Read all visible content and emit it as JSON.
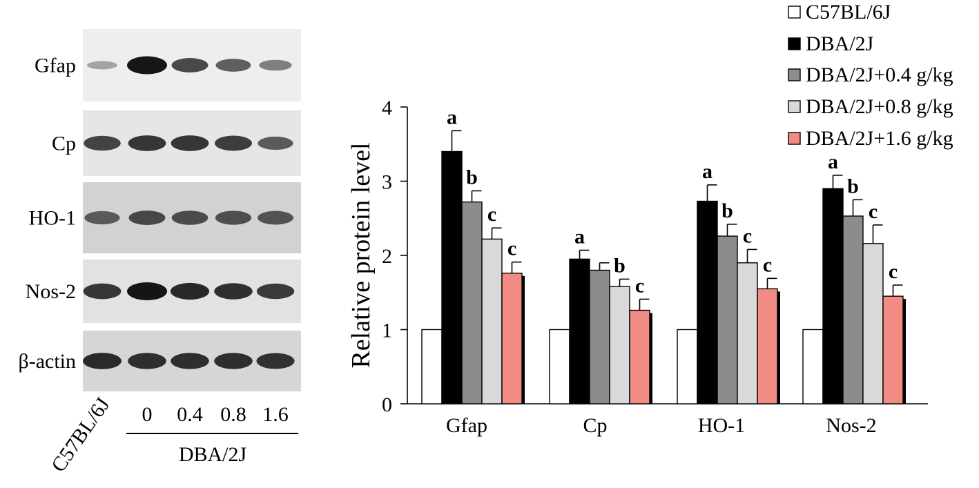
{
  "blot": {
    "rows": [
      {
        "label": "Gfap",
        "intensity": [
          0.22,
          1.0,
          0.72,
          0.6,
          0.42
        ],
        "bg": "#eeeeee"
      },
      {
        "label": "Cp",
        "intensity": [
          0.75,
          0.82,
          0.82,
          0.78,
          0.62
        ],
        "bg": "#e6e6e6"
      },
      {
        "label": "HO-1",
        "intensity": [
          0.62,
          0.72,
          0.7,
          0.68,
          0.66
        ],
        "bg": "#d2d2d2"
      },
      {
        "label": "Nos-2",
        "intensity": [
          0.82,
          1.0,
          0.9,
          0.86,
          0.8
        ],
        "bg": "#e2e2e2"
      },
      {
        "label": "β-actin",
        "intensity": [
          0.88,
          0.86,
          0.86,
          0.86,
          0.84
        ],
        "bg": "#d6d6d6"
      }
    ],
    "control_label": "C57BL/6J",
    "dose_labels": [
      "0",
      "0.4",
      "0.8",
      "1.6"
    ],
    "group_label": "DBA/2J"
  },
  "chart_data": {
    "type": "bar",
    "categories": [
      "Gfap",
      "Cp",
      "HO-1",
      "Nos-2"
    ],
    "ylabel": "Relative protein level",
    "ylim": [
      0,
      4
    ],
    "yticks": [
      "0",
      "1",
      "2",
      "3",
      "4"
    ],
    "grid": false,
    "legend_position": "top-right",
    "series": [
      {
        "name": "C57BL/6J",
        "color": "#ffffff",
        "values": [
          1,
          1,
          1,
          1
        ],
        "errors": [
          0,
          0,
          0,
          0
        ],
        "labels": [
          "",
          "",
          "",
          ""
        ]
      },
      {
        "name": "DBA/2J",
        "color": "#000000",
        "values": [
          3.4,
          1.95,
          2.73,
          2.9
        ],
        "errors": [
          0.28,
          0.12,
          0.22,
          0.18
        ],
        "labels": [
          "a",
          "a",
          "a",
          "a"
        ]
      },
      {
        "name": "DBA/2J+0.4 g/kg",
        "color": "#8c8c8c",
        "values": [
          2.72,
          1.8,
          2.26,
          2.53
        ],
        "errors": [
          0.15,
          0.1,
          0.16,
          0.22
        ],
        "labels": [
          "b",
          "",
          "b",
          "b"
        ]
      },
      {
        "name": "DBA/2J+0.8 g/kg",
        "color": "#d9d9d9",
        "values": [
          2.22,
          1.58,
          1.9,
          2.16
        ],
        "errors": [
          0.15,
          0.1,
          0.18,
          0.25
        ],
        "labels": [
          "c",
          "b",
          "c",
          "c"
        ]
      },
      {
        "name": "DBA/2J+1.6 g/kg",
        "color": "#f08c84",
        "values": [
          1.76,
          1.26,
          1.55,
          1.45
        ],
        "errors": [
          0.15,
          0.15,
          0.14,
          0.15
        ],
        "labels": [
          "c",
          "c",
          "c",
          "c"
        ]
      }
    ]
  }
}
